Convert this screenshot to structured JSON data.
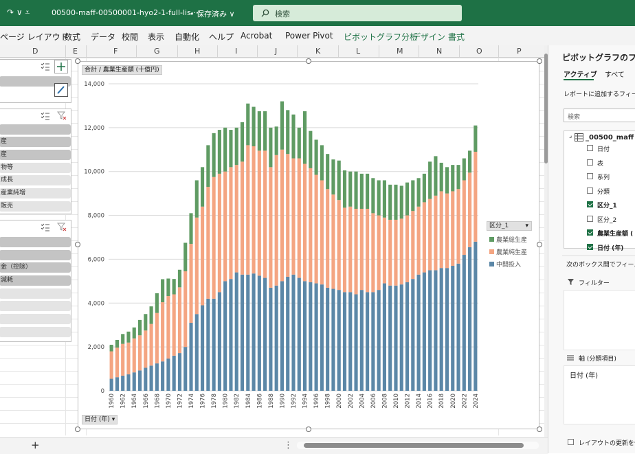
{
  "titlebar": {
    "qat_glyphs": "↷ ∨ ⩡",
    "filename": "00500-maff-00500001-hyo2-1-full-lis···",
    "saved_status": "• 保存済み ∨",
    "search_placeholder": "検索"
  },
  "ribbon": {
    "tabs": [
      "ページ レイアウト",
      "数式",
      "データ",
      "校閲",
      "表示",
      "自動化",
      "ヘルプ",
      "Acrobat",
      "Power Pivot",
      "ピボットグラフ分析",
      "デザイン",
      "書式"
    ]
  },
  "columns": [
    "D",
    "E",
    "F",
    "G",
    "H",
    "I",
    "J",
    "K",
    "L",
    "M",
    "N",
    "O",
    "P"
  ],
  "slicers": [
    {
      "items": [
        {
          "label": "",
          "selected": true
        },
        {
          "label": "",
          "selected": false
        }
      ]
    },
    {
      "items": [
        {
          "label": "",
          "selected": true
        },
        {
          "label": "産",
          "selected": true
        },
        {
          "label": "産",
          "selected": true
        },
        {
          "label": "物等",
          "selected": false
        },
        {
          "label": "成長",
          "selected": false
        },
        {
          "label": "産業純増",
          "selected": false
        },
        {
          "label": "販売",
          "selected": false
        }
      ]
    },
    {
      "items": [
        {
          "label": "",
          "selected": true
        },
        {
          "label": "",
          "selected": true
        },
        {
          "label": "金（控除）",
          "selected": true
        },
        {
          "label": "減耗",
          "selected": true
        },
        {
          "label": "",
          "selected": false
        },
        {
          "label": "",
          "selected": false
        },
        {
          "label": "",
          "selected": false
        },
        {
          "label": "",
          "selected": false
        }
      ]
    }
  ],
  "chart": {
    "value_field_button": "合計 / 農業生産額 (十億円)",
    "axis_field_button": "日付 (年) ▾",
    "legend_field_button": "区分_1",
    "legend_dropdown": "▾"
  },
  "chart_data": {
    "type": "bar",
    "stacked": true,
    "title": "",
    "ylabel": "",
    "xlabel": "",
    "ylim": [
      0,
      14000
    ],
    "y_ticks": [
      "0",
      "2,000",
      "4,000",
      "6,000",
      "8,000",
      "10,000",
      "12,000",
      "14,000"
    ],
    "legend_position": "right",
    "categories": [
      "1960",
      "1961",
      "1962",
      "1963",
      "1964",
      "1965",
      "1966",
      "1967",
      "1968",
      "1969",
      "1970",
      "1971",
      "1972",
      "1973",
      "1974",
      "1975",
      "1976",
      "1977",
      "1978",
      "1979",
      "1980",
      "1981",
      "1982",
      "1983",
      "1984",
      "1985",
      "1986",
      "1987",
      "1988",
      "1989",
      "1990",
      "1991",
      "1992",
      "1993",
      "1994",
      "1995",
      "1996",
      "1997",
      "1998",
      "1999",
      "2000",
      "2001",
      "2002",
      "2003",
      "2004",
      "2005",
      "2006",
      "2007",
      "2008",
      "2009",
      "2010",
      "2011",
      "2012",
      "2013",
      "2014",
      "2015",
      "2016",
      "2017",
      "2018",
      "2019",
      "2020",
      "2021",
      "2022",
      "2023",
      "2024"
    ],
    "x_tick_labels": [
      "1960",
      "1962",
      "1964",
      "1966",
      "1968",
      "1970",
      "1972",
      "1974",
      "1976",
      "1978",
      "1980",
      "1982",
      "1984",
      "1986",
      "1988",
      "1990",
      "1992",
      "1994",
      "1996",
      "1998",
      "2000",
      "2002",
      "2004",
      "2006",
      "2008",
      "2010",
      "2012",
      "2014",
      "2016",
      "2018",
      "2020",
      "2022",
      "2024"
    ],
    "series": [
      {
        "name": "中間投入",
        "color": "#5b87a7",
        "values": [
          550,
          620,
          690,
          750,
          840,
          930,
          1050,
          1150,
          1250,
          1340,
          1470,
          1600,
          1720,
          2000,
          3100,
          3500,
          3900,
          4200,
          4200,
          4500,
          5000,
          5100,
          5400,
          5300,
          5300,
          5350,
          5250,
          5150,
          4700,
          4800,
          5000,
          5200,
          5300,
          5150,
          5000,
          4950,
          4900,
          4850,
          4700,
          4650,
          4600,
          4500,
          4500,
          4400,
          4600,
          4500,
          4500,
          4600,
          4900,
          4800,
          4800,
          4850,
          4950,
          5100,
          5300,
          5400,
          5500,
          5500,
          5600,
          5600,
          5700,
          5800,
          6200,
          6550,
          6800
        ]
      },
      {
        "name": "農業純生産",
        "color": "#f4a582",
        "values": [
          1250,
          1350,
          1450,
          1450,
          1550,
          1600,
          1700,
          1900,
          2300,
          2700,
          2850,
          2800,
          3000,
          3450,
          3600,
          4400,
          4500,
          5100,
          5550,
          5400,
          5000,
          5100,
          4900,
          5150,
          5900,
          5800,
          5700,
          5800,
          5500,
          5950,
          6000,
          5600,
          5300,
          5450,
          5350,
          5200,
          4950,
          4750,
          4500,
          4300,
          4100,
          3850,
          3900,
          3900,
          3700,
          3800,
          3600,
          3400,
          3000,
          3000,
          3000,
          3000,
          3050,
          3100,
          3100,
          3200,
          3250,
          3400,
          3500,
          3400,
          3400,
          3400,
          3400,
          3400,
          4100
        ]
      },
      {
        "name": "農業総生産",
        "color": "#5f9b63",
        "values": [
          300,
          350,
          450,
          500,
          500,
          700,
          750,
          800,
          900,
          1050,
          800,
          700,
          800,
          1300,
          1400,
          1700,
          1800,
          1900,
          2000,
          2000,
          2000,
          1700,
          1700,
          1800,
          1900,
          1800,
          1800,
          1800,
          1800,
          1300,
          2200,
          2000,
          2000,
          1400,
          2400,
          1700,
          1600,
          1600,
          1600,
          1600,
          1800,
          1700,
          1600,
          1700,
          1600,
          1600,
          1600,
          1600,
          1700,
          1600,
          1600,
          1500,
          1500,
          1400,
          1300,
          1300,
          1700,
          1800,
          1300,
          1200,
          1200,
          1100,
          1000,
          1000,
          1200
        ]
      }
    ]
  },
  "pane": {
    "title": "ピボットグラフのフィー",
    "tab_active": "アクティブ",
    "tab_all": "すべて",
    "add_fields_label": "レポートに追加するフィール",
    "search_placeholder": "検索",
    "table_name": "_00500_maff",
    "fields": [
      {
        "label": "日付",
        "checked": false,
        "bold": false
      },
      {
        "label": "表",
        "checked": false,
        "bold": false
      },
      {
        "label": "系列",
        "checked": false,
        "bold": false
      },
      {
        "label": "分類",
        "checked": false,
        "bold": false
      },
      {
        "label": "区分_1",
        "checked": true,
        "bold": true
      },
      {
        "label": "区分_2",
        "checked": false,
        "bold": false
      },
      {
        "label": "農業生産額 (",
        "checked": true,
        "bold": true
      },
      {
        "label": "日付 (年)",
        "checked": true,
        "bold": true
      }
    ],
    "drag_label": "次のボックス間でフィールド",
    "filter_label": "フィルター",
    "axis_label": "軸 (分類項目)",
    "axis_value": "日付 (年)",
    "defer_label": "レイアウトの更新を保"
  },
  "bottom": {
    "add_sheet": "+",
    "more": "⋮"
  }
}
